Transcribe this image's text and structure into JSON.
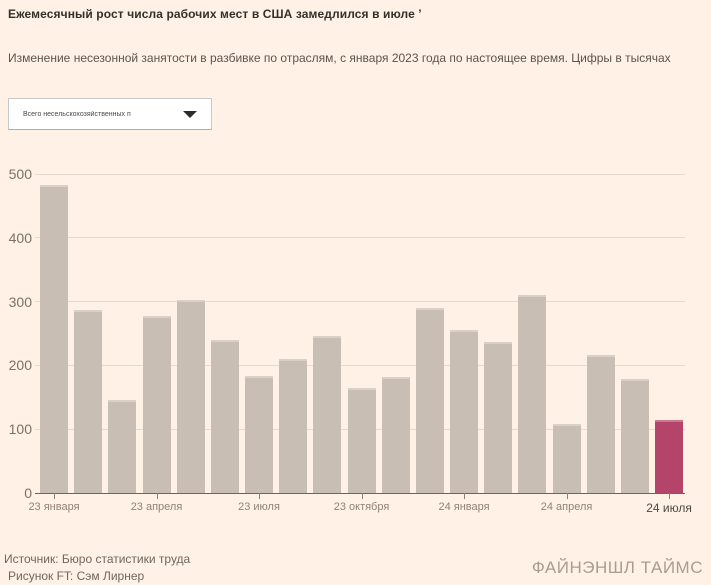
{
  "header": {
    "title": "Ежемесячный рост числа рабочих мест в США замедлился в июле ʼ",
    "subtitle": "Изменение несезонной занятости в разбивке по отраслям, с января 2023 года по настоящее время. Цифры в тысячах"
  },
  "filter": {
    "selected_option": "Всего несельскохозяйственных п",
    "icon": "caret-down-icon"
  },
  "chart_data": {
    "type": "bar",
    "title": "Ежемесячный рост числа рабочих мест в США замедлился в июле",
    "subtitle": "Изменение несезонной занятости в разбивке по отраслям, с января 2023 года по настоящее время. Цифры в тысячах",
    "xlabel": "",
    "ylabel": "",
    "units": "тысячи",
    "values": [
      482,
      287,
      146,
      278,
      303,
      240,
      184,
      210,
      246,
      165,
      182,
      290,
      256,
      236,
      310,
      108,
      216,
      179,
      114
    ],
    "x_tick_labels": [
      "23 января",
      "23 апреля",
      "23 июля",
      "23 октября",
      "24 января",
      "24 апреля",
      "24 июля"
    ],
    "x_tick_bar_indices": [
      0,
      3,
      6,
      9,
      12,
      15,
      18
    ],
    "y_ticks": [
      0,
      100,
      200,
      300,
      400,
      500
    ],
    "ylim": [
      0,
      500
    ],
    "grid": "horizontal",
    "legend": "none",
    "highlight_index": 18,
    "bar_color": "#c9beb4",
    "highlight_color": "#b5446b"
  },
  "footer": {
    "source": "Источник: Бюро статистики труда",
    "credit": "Рисунок FT: Сэм Лирнер",
    "brand": "ФАЙНЭНШЛ ТАЙМС"
  },
  "colors": {
    "background": "#fff1e5",
    "grid_line": "#e8dacb",
    "axis_line": "#6d655c",
    "y_label": "#7b7266",
    "x_label": "#8d8376",
    "x_label_highlight": "#4f4a43",
    "title_text": "#33302a",
    "subtitle_text": "#5c554c",
    "footer_text": "#6e675e",
    "brand_text": "#a89d90"
  }
}
